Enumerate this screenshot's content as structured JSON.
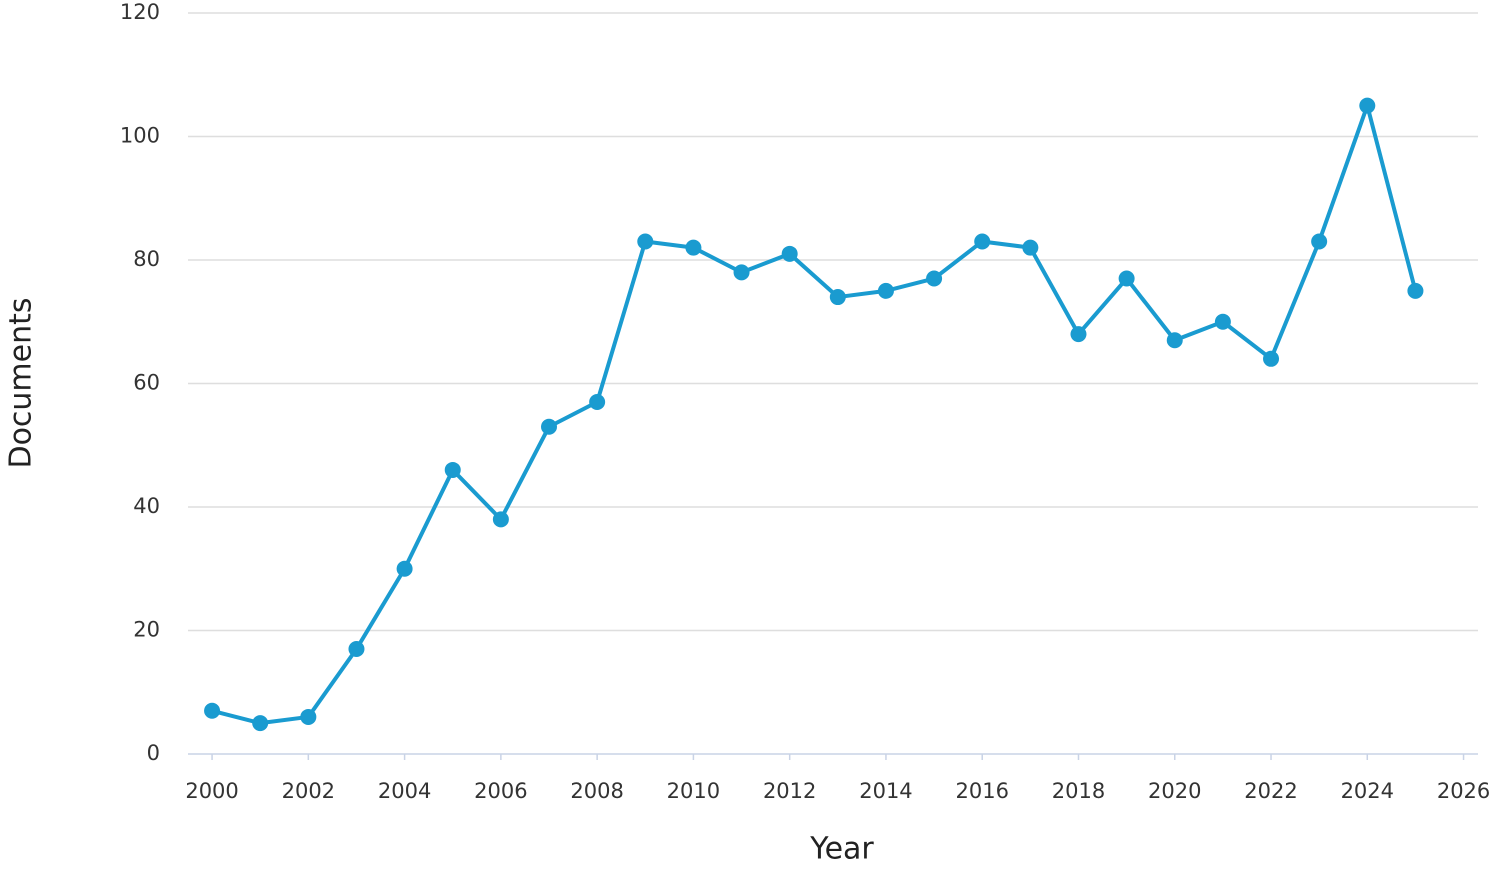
{
  "chart_data": {
    "type": "line",
    "x_label": "Year",
    "y_label": "Documents",
    "x": [
      2000,
      2001,
      2002,
      2003,
      2004,
      2005,
      2006,
      2007,
      2008,
      2009,
      2010,
      2011,
      2012,
      2013,
      2014,
      2015,
      2016,
      2017,
      2018,
      2019,
      2020,
      2021,
      2022,
      2023,
      2024,
      2025
    ],
    "series": [
      {
        "color": "#1a9bd0",
        "values": [
          7,
          5,
          6,
          17,
          30,
          46,
          38,
          53,
          57,
          83,
          82,
          78,
          81,
          74,
          75,
          77,
          83,
          82,
          68,
          77,
          67,
          70,
          64,
          83,
          105,
          75
        ]
      }
    ],
    "xlim": [
      1999.5,
      2026.3
    ],
    "xticks": [
      2000,
      2002,
      2004,
      2006,
      2008,
      2010,
      2012,
      2014,
      2016,
      2018,
      2020,
      2022,
      2024,
      2026
    ],
    "ylim": [
      0,
      120
    ],
    "yticks": [
      0,
      20,
      40,
      60,
      80,
      100,
      120
    ],
    "grid": true
  }
}
